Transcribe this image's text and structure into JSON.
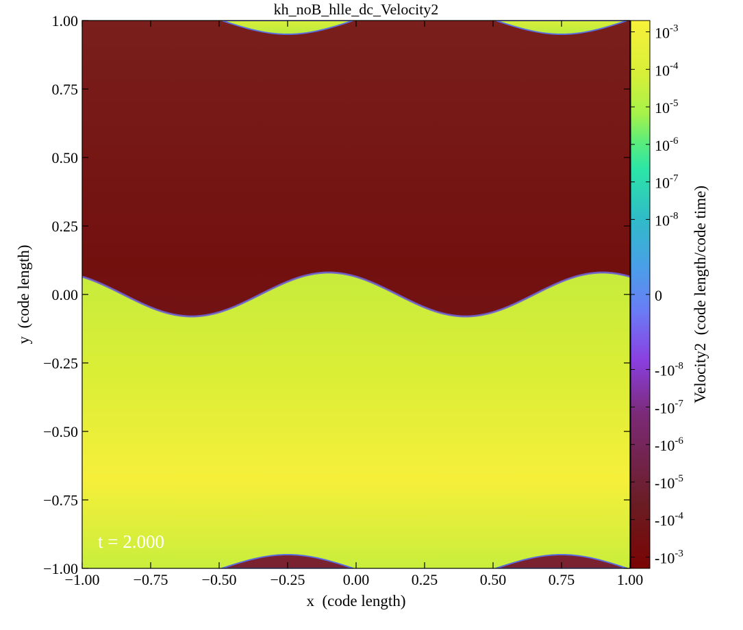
{
  "chart_data": {
    "type": "heatmap",
    "title": "kh_noB_hlle_dc_Velocity2",
    "xlabel": "x  (code length)",
    "ylabel": "y  (code length)",
    "xlim": [
      -1.0,
      1.0
    ],
    "ylim": [
      -1.0,
      1.0
    ],
    "xticks": [
      -1.0,
      -0.75,
      -0.5,
      -0.25,
      0.0,
      0.25,
      0.5,
      0.75,
      1.0
    ],
    "yticks": [
      -1.0,
      -0.75,
      -0.5,
      -0.25,
      0.0,
      0.25,
      0.5,
      0.75,
      1.0
    ],
    "xtick_labels": [
      "−1.00",
      "−0.75",
      "−0.50",
      "−0.25",
      "0.00",
      "0.25",
      "0.50",
      "0.75",
      "1.00"
    ],
    "ytick_labels": [
      "−1.00",
      "−0.75",
      "−0.50",
      "−0.25",
      "0.00",
      "0.25",
      "0.50",
      "0.75",
      "1.00"
    ],
    "annotation": "t = 2.000",
    "interface": {
      "center_y": 0.0,
      "amplitude": 0.08,
      "wavelength": 1.0,
      "crest_x": [
        -0.1,
        0.9
      ],
      "trough_x": [
        -0.6,
        0.4
      ]
    },
    "upper_region_sign": "negative",
    "lower_region_sign": "positive",
    "colorbar": {
      "label": "Velocity2  (code length/code time)",
      "scale": "symlog",
      "linthresh": 1e-09,
      "range": [
        -0.002,
        0.002
      ],
      "tick_values": [
        0.001,
        0.0001,
        1e-05,
        1e-06,
        1e-07,
        1e-08,
        0,
        -1e-08,
        -1e-07,
        -1e-06,
        -1e-05,
        -0.0001,
        -0.001
      ],
      "tick_labels": [
        {
          "base": "10",
          "exp": "-3"
        },
        {
          "base": "10",
          "exp": "-4"
        },
        {
          "base": "10",
          "exp": "-5"
        },
        {
          "base": "10",
          "exp": "-6"
        },
        {
          "base": "10",
          "exp": "-7"
        },
        {
          "base": "10",
          "exp": "-8"
        },
        {
          "base": "0",
          "exp": ""
        },
        {
          "base": "-10",
          "exp": "-8"
        },
        {
          "base": "-10",
          "exp": "-7"
        },
        {
          "base": "-10",
          "exp": "-6"
        },
        {
          "base": "-10",
          "exp": "-5"
        },
        {
          "base": "-10",
          "exp": "-4"
        },
        {
          "base": "-10",
          "exp": "-3"
        }
      ],
      "colors": [
        "#7a0403",
        "#a1221b",
        "#7b2a76",
        "#8a3fe0",
        "#6a7cf6",
        "#4a9fe8",
        "#2fbcc7",
        "#2ce6a6",
        "#a6f24a",
        "#d6ef38",
        "#f4ee3b",
        "#f8f139"
      ]
    }
  }
}
